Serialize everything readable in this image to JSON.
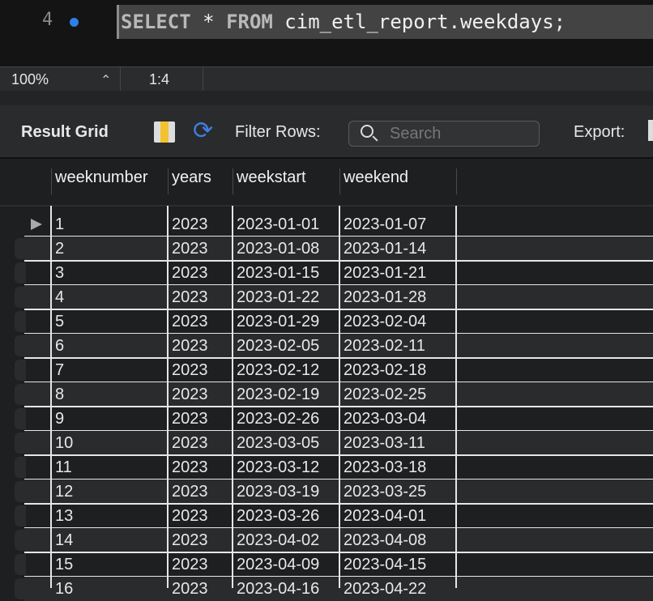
{
  "editor": {
    "line_number": "4",
    "sql_keyword1": "SELECT",
    "sql_star": " * ",
    "sql_keyword2": "FROM",
    "sql_rest": " cim_etl_report.weekdays;"
  },
  "status": {
    "zoom": "100%",
    "cursor_position": "1:4"
  },
  "toolbar": {
    "result_grid": "Result Grid",
    "filter_rows": "Filter Rows:",
    "search_placeholder": "Search",
    "export": "Export:"
  },
  "columns": [
    "weeknumber",
    "years",
    "weekstart",
    "weekend"
  ],
  "rows": [
    [
      "1",
      "2023",
      "2023-01-01",
      "2023-01-07"
    ],
    [
      "2",
      "2023",
      "2023-01-08",
      "2023-01-14"
    ],
    [
      "3",
      "2023",
      "2023-01-15",
      "2023-01-21"
    ],
    [
      "4",
      "2023",
      "2023-01-22",
      "2023-01-28"
    ],
    [
      "5",
      "2023",
      "2023-01-29",
      "2023-02-04"
    ],
    [
      "6",
      "2023",
      "2023-02-05",
      "2023-02-11"
    ],
    [
      "7",
      "2023",
      "2023-02-12",
      "2023-02-18"
    ],
    [
      "8",
      "2023",
      "2023-02-19",
      "2023-02-25"
    ],
    [
      "9",
      "2023",
      "2023-02-26",
      "2023-03-04"
    ],
    [
      "10",
      "2023",
      "2023-03-05",
      "2023-03-11"
    ],
    [
      "11",
      "2023",
      "2023-03-12",
      "2023-03-18"
    ],
    [
      "12",
      "2023",
      "2023-03-19",
      "2023-03-25"
    ],
    [
      "13",
      "2023",
      "2023-03-26",
      "2023-04-01"
    ],
    [
      "14",
      "2023",
      "2023-04-02",
      "2023-04-08"
    ],
    [
      "15",
      "2023",
      "2023-04-09",
      "2023-04-15"
    ],
    [
      "16",
      "2023",
      "2023-04-16",
      "2023-04-22"
    ]
  ]
}
